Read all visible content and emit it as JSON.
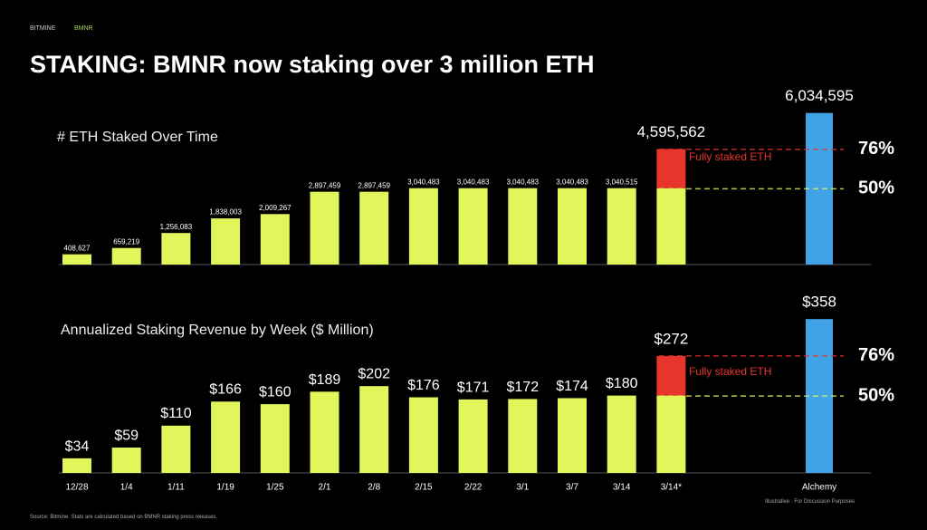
{
  "header_brand": "BITMINE",
  "header_tag": "BMNR",
  "title": "STAKING: BMNR now staking over 3 million ETH",
  "source": "Source: Bitmine. Stats are calculated based on BMNR staking press releases.",
  "disclaimer": "Illustrative · For Discussion Purposes",
  "chart_data": [
    {
      "type": "bar",
      "title": "# ETH Staked Over Time",
      "ylim": [
        0,
        6600000
      ],
      "series": [
        {
          "name": null,
          "color": "#e2f55a",
          "values": [
            408627,
            659219,
            1256083,
            1838003,
            2009267,
            2897459,
            2897459,
            3040483,
            3040483,
            3040483,
            3040483,
            3040515,
            3040515,
            null
          ],
          "value_labels": [
            "408,627",
            "659,219",
            "1,256,083",
            "1,838,003",
            "2,009,267",
            "2,897,459",
            "2,897,459",
            "3,040,483",
            "3,040,483",
            "3,040,483",
            "3,040,483",
            "3,040,515",
            null,
            null
          ]
        },
        {
          "name": "Fully staked ETH",
          "color": "#e8352c",
          "values": [
            null,
            null,
            null,
            null,
            null,
            null,
            null,
            null,
            null,
            null,
            null,
            null,
            1555047,
            null
          ]
        },
        {
          "name": null,
          "color": "#3fa3e6",
          "values": [
            null,
            null,
            null,
            null,
            null,
            null,
            null,
            null,
            null,
            null,
            null,
            null,
            null,
            6034595
          ],
          "value_labels": [
            null,
            null,
            null,
            null,
            null,
            null,
            null,
            null,
            null,
            null,
            null,
            null,
            null,
            "6,034,595"
          ]
        }
      ],
      "stack_total": {
        "value": 4595562,
        "label": "4,595,562"
      },
      "reference_lines": [
        {
          "value": 76,
          "label": "76%",
          "color": "#e8352c"
        },
        {
          "value": 50,
          "label": "50%",
          "color": "#e2f55a"
        }
      ]
    },
    {
      "type": "bar",
      "title": "Annualized Staking Revenue by Week ($ Million)",
      "ylim": [
        0,
        390
      ],
      "categories": [
        "12/28",
        "1/4",
        "1/11",
        "1/19",
        "1/25",
        "2/1",
        "2/8",
        "2/15",
        "2/22",
        "3/1",
        "3/7",
        "3/14",
        "3/14*",
        "Alchemy"
      ],
      "series": [
        {
          "name": null,
          "color": "#e2f55a",
          "values": [
            34,
            59,
            110,
            166,
            160,
            189,
            202,
            176,
            171,
            172,
            174,
            180,
            180,
            null
          ],
          "value_labels": [
            "$34",
            "$59",
            "$110",
            "$166",
            "$160",
            "$189",
            "$202",
            "$176",
            "$171",
            "$172",
            "$174",
            "$180",
            null,
            null
          ]
        },
        {
          "name": "Fully staked ETH",
          "color": "#e8352c",
          "values": [
            null,
            null,
            null,
            null,
            null,
            null,
            null,
            null,
            null,
            null,
            null,
            null,
            92,
            null
          ]
        },
        {
          "name": null,
          "color": "#3fa3e6",
          "values": [
            null,
            null,
            null,
            null,
            null,
            null,
            null,
            null,
            null,
            null,
            null,
            null,
            null,
            358
          ],
          "value_labels": [
            null,
            null,
            null,
            null,
            null,
            null,
            null,
            null,
            null,
            null,
            null,
            null,
            null,
            "$358"
          ]
        }
      ],
      "stack_total": {
        "value": 272,
        "label": "$272"
      },
      "reference_lines": [
        {
          "value": 76,
          "label": "76%",
          "color": "#e8352c"
        },
        {
          "value": 50,
          "label": "50%",
          "color": "#e2f55a"
        }
      ]
    }
  ]
}
